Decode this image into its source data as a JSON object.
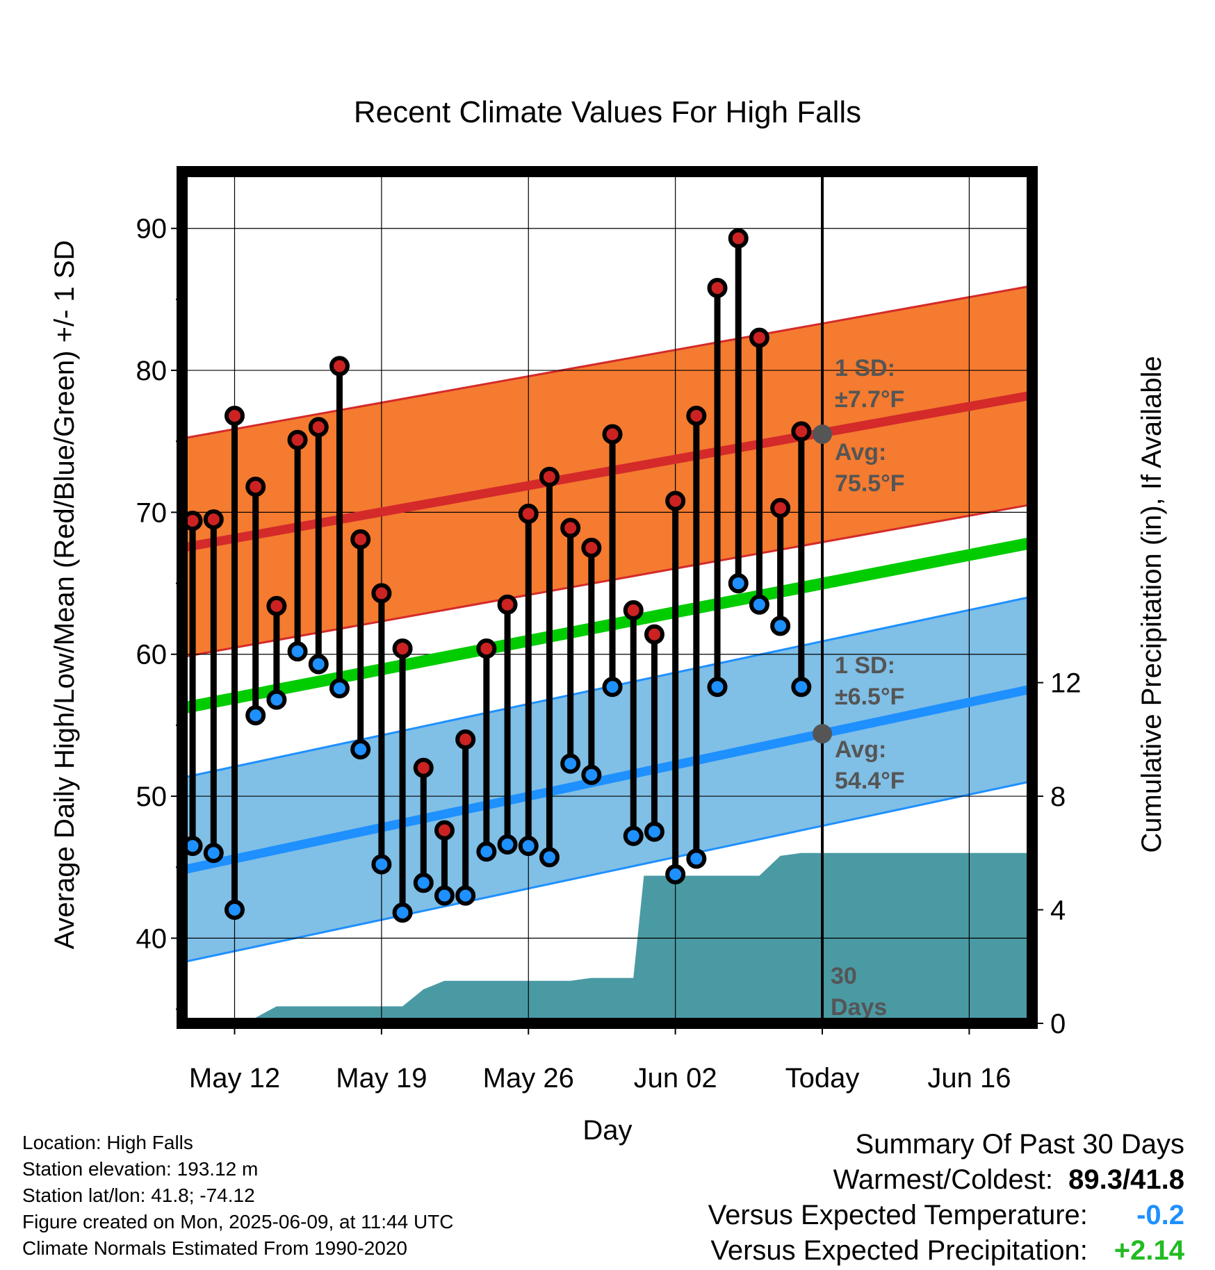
{
  "chart_data": {
    "type": "line",
    "title": "Recent Climate Values For High Falls",
    "xlabel": "Day",
    "ylabel": "Average Daily High/Low/Mean (Red/Blue/Green) +/- 1 SD",
    "y2label": "Cumulative Precipitation (in), If Available",
    "x_day_range": [
      -30.5,
      10
    ],
    "ylim": [
      34,
      94
    ],
    "y2lim": [
      0,
      30
    ],
    "grid": true,
    "x_ticks": [
      {
        "day": -28,
        "label": "May 12"
      },
      {
        "day": -21,
        "label": "May 19"
      },
      {
        "day": -14,
        "label": "May 26"
      },
      {
        "day": -7,
        "label": "Jun 02"
      },
      {
        "day": 0,
        "label": "Today"
      },
      {
        "day": 7,
        "label": "Jun 16"
      }
    ],
    "y_ticks": [
      40,
      50,
      60,
      70,
      80,
      90
    ],
    "y2_ticks": [
      0,
      4,
      8,
      12
    ],
    "normals": {
      "high_avg": [
        67.5,
        78.2
      ],
      "high_sd": 7.7,
      "low_avg": [
        44.8,
        57.5
      ],
      "low_sd": 6.5,
      "mean_avg": [
        56.2,
        67.8
      ],
      "x_range": [
        -30.5,
        9.8
      ]
    },
    "daily": {
      "days": [
        -30,
        -29,
        -28,
        -27,
        -26,
        -25,
        -24,
        -23,
        -22,
        -21,
        -20,
        -19,
        -18,
        -17,
        -16,
        -15,
        -14,
        -13,
        -12,
        -11,
        -10,
        -9,
        -8,
        -7,
        -6,
        -5,
        -4,
        -3,
        -2,
        -1
      ],
      "high": [
        69.4,
        69.5,
        76.8,
        71.8,
        63.4,
        75.1,
        76.0,
        80.3,
        68.1,
        64.3,
        60.4,
        52.0,
        47.6,
        54.0,
        60.4,
        63.5,
        69.9,
        72.5,
        68.9,
        67.5,
        75.5,
        63.1,
        61.4,
        70.8,
        76.8,
        85.8,
        89.3,
        82.3,
        70.3,
        75.7
      ],
      "low": [
        46.5,
        46.0,
        42.0,
        55.7,
        56.8,
        60.2,
        59.3,
        57.6,
        53.3,
        45.2,
        41.8,
        43.9,
        43.0,
        43.0,
        46.1,
        46.6,
        46.5,
        45.7,
        52.3,
        51.5,
        57.7,
        47.2,
        47.5,
        44.5,
        45.6,
        57.7,
        65.0,
        63.5,
        62.0,
        57.7
      ]
    },
    "precip": {
      "x": [
        -30.5,
        -27.5,
        -26,
        -23.5,
        -20,
        -19,
        -18,
        -17,
        -16,
        -15,
        -14,
        -12,
        -11,
        -10,
        -9,
        -8.5,
        -7,
        -5,
        -4,
        -3,
        -2,
        -1,
        0,
        1,
        2,
        3,
        4,
        5,
        6,
        7,
        8,
        9,
        9.8
      ],
      "y": [
        0,
        0,
        0.6,
        0.6,
        0.6,
        1.2,
        1.5,
        1.5,
        1.5,
        1.5,
        1.5,
        1.5,
        1.6,
        1.6,
        1.6,
        5.2,
        5.2,
        5.2,
        5.2,
        5.2,
        5.9,
        6.0,
        6.0,
        6.0,
        6.0,
        6.0,
        6.0,
        6.0,
        6.0,
        6.0,
        6.0,
        6.0,
        6.0
      ]
    },
    "today_marker": {
      "day": 0,
      "label_1": "30",
      "label_2": "Days"
    },
    "annotations": {
      "high_sd_label": "1 SD:",
      "high_sd_value": "±7.7°F",
      "high_avg_label": "Avg:",
      "high_avg_value": "75.5°F",
      "high_avg_today": 75.5,
      "low_sd_label": "1 SD:",
      "low_sd_value": "±6.5°F",
      "low_avg_label": "Avg:",
      "low_avg_value": "54.4°F",
      "low_avg_today": 54.4
    },
    "colors": {
      "high_band": "#f47b30",
      "high_line": "#d42a2a",
      "low_band": "#80bfe6",
      "low_line": "#1e90ff",
      "mean_line": "#00cc00",
      "precip": "#4a9aa4",
      "high_marker": "#cc2222",
      "low_marker": "#1e90ff",
      "avg_marker": "#555555"
    }
  },
  "footer": {
    "location": "Location: High Falls",
    "elevation": "Station elevation: 193.12 m",
    "latlon": "Station lat/lon: 41.8; -74.12",
    "created": "Figure created on Mon, 2025-06-09, at 11:44 UTC",
    "normals": "Climate Normals Estimated From 1990-2020"
  },
  "summary": {
    "heading": "Summary Of Past 30 Days",
    "warmest_label": "Warmest/Coldest:",
    "warmest_value": "89.3/41.8",
    "temp_label": "Versus Expected Temperature:",
    "temp_value": "-0.2",
    "temp_color": "#1e90ff",
    "precip_label": "Versus Expected Precipitation:",
    "precip_value": "+2.14",
    "precip_color": "#22bb22"
  }
}
